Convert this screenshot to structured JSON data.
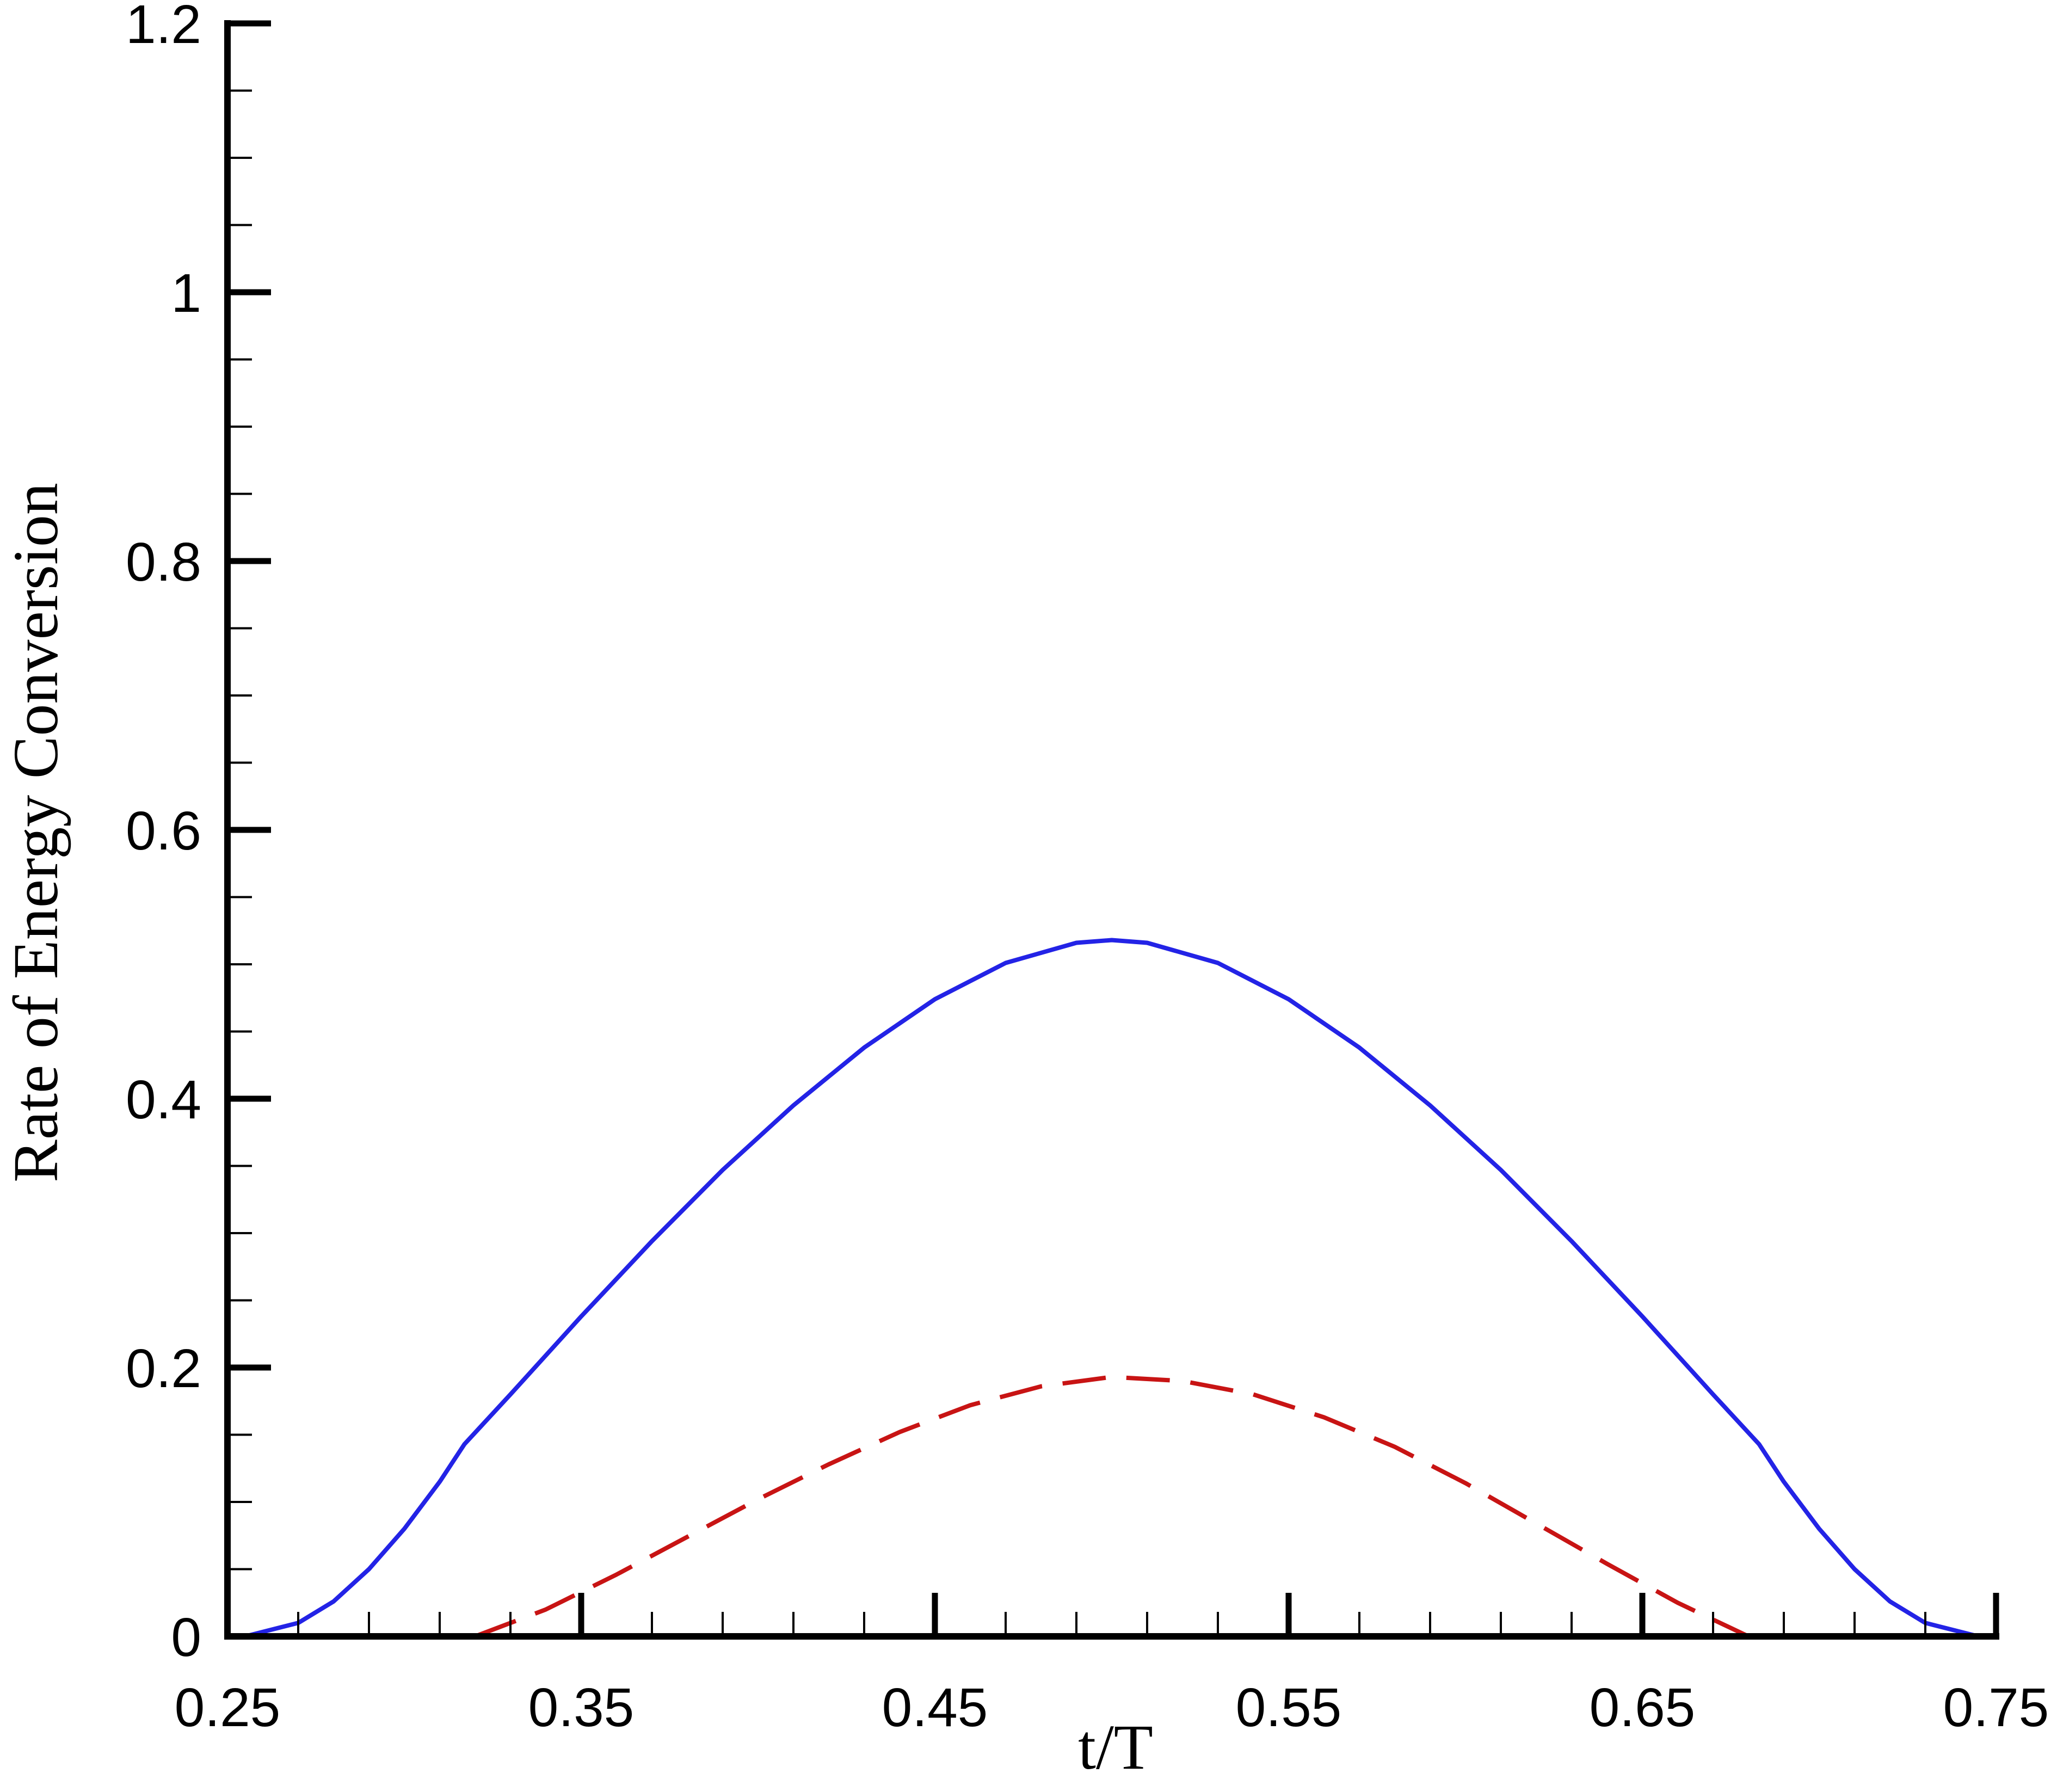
{
  "chart_data": {
    "type": "line",
    "title": "",
    "xlabel": "t/T",
    "ylabel": "Rate of Energy Conversion",
    "xlim": [
      0.25,
      0.75
    ],
    "ylim": [
      0,
      1.2
    ],
    "xticks": [
      "0.25",
      "0.35",
      "0.45",
      "0.55",
      "0.65",
      "0.75"
    ],
    "yticks": [
      "0",
      "0.2",
      "0.4",
      "0.6",
      "0.8",
      "1",
      "1.2"
    ],
    "grid": false,
    "legend": "none",
    "series": [
      {
        "color": "#2323e6",
        "style": "solid",
        "x": [
          0.255,
          0.27,
          0.28,
          0.29,
          0.3,
          0.31,
          0.317,
          0.33,
          0.35,
          0.37,
          0.39,
          0.41,
          0.43,
          0.45,
          0.47,
          0.49,
          0.5,
          0.51,
          0.53,
          0.55,
          0.57,
          0.59,
          0.61,
          0.63,
          0.65,
          0.67,
          0.683,
          0.69,
          0.7,
          0.71,
          0.72,
          0.73,
          0.745
        ],
        "y": [
          0.0,
          0.01,
          0.026,
          0.05,
          0.08,
          0.115,
          0.143,
          0.18,
          0.238,
          0.294,
          0.347,
          0.395,
          0.438,
          0.474,
          0.501,
          0.516,
          0.518,
          0.516,
          0.501,
          0.474,
          0.438,
          0.395,
          0.347,
          0.294,
          0.238,
          0.18,
          0.143,
          0.115,
          0.08,
          0.05,
          0.026,
          0.01,
          0.0
        ]
      },
      {
        "color": "#c81414",
        "style": "dashed",
        "x": [
          0.32,
          0.34,
          0.36,
          0.38,
          0.4,
          0.42,
          0.44,
          0.46,
          0.48,
          0.5,
          0.52,
          0.54,
          0.56,
          0.58,
          0.6,
          0.62,
          0.64,
          0.66,
          0.68
        ],
        "y": [
          0.0,
          0.02,
          0.046,
          0.074,
          0.102,
          0.128,
          0.152,
          0.172,
          0.186,
          0.193,
          0.19,
          0.18,
          0.163,
          0.141,
          0.114,
          0.084,
          0.054,
          0.025,
          0.0
        ]
      }
    ]
  }
}
